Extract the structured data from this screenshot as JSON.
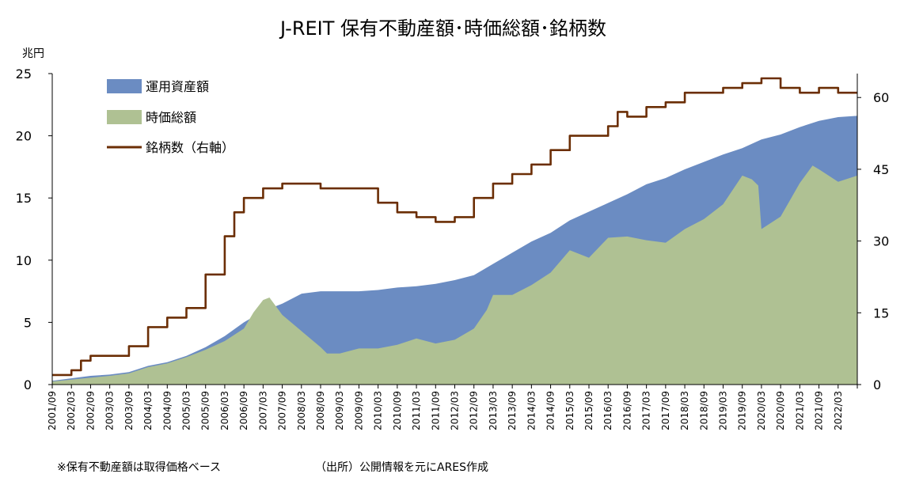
{
  "chart_data": {
    "type": "area",
    "title": "J-REIT 保有不動産額･時価総額･銘柄数",
    "y_unit": "兆円",
    "ylim": [
      0,
      25
    ],
    "yticks": [
      0,
      5,
      10,
      15,
      20,
      25
    ],
    "y2lim": [
      0,
      65
    ],
    "y2ticks": [
      0,
      15,
      30,
      45,
      60
    ],
    "x_tick_labels": [
      "2001/09",
      "2002/03",
      "2002/09",
      "2003/03",
      "2003/09",
      "2004/03",
      "2004/09",
      "2005/03",
      "2005/09",
      "2006/03",
      "2006/09",
      "2007/03",
      "2007/09",
      "2008/03",
      "2008/09",
      "2009/03",
      "2009/09",
      "2010/03",
      "2010/09",
      "2011/03",
      "2011/09",
      "2012/03",
      "2012/09",
      "2013/03",
      "2013/09",
      "2014/03",
      "2014/09",
      "2015/03",
      "2015/09",
      "2016/03",
      "2016/09",
      "2017/03",
      "2017/09",
      "2018/03",
      "2018/09",
      "2019/03",
      "2019/09",
      "2020/03",
      "2020/09",
      "2021/03",
      "2021/09",
      "2022/03"
    ],
    "x_start": "2001/09",
    "x_end": "2022/09",
    "legend": [
      "運用資産額",
      "時価総額",
      "銘柄数（右軸）"
    ],
    "legend_position": "top-left",
    "colors": {
      "assets": "#6b8cc2",
      "market_cap": "#afc193",
      "count": "#6b2e05"
    },
    "series": [
      {
        "name": "運用資産額",
        "kind": "area",
        "points": [
          [
            "2001/09",
            0.3
          ],
          [
            "2002/03",
            0.5
          ],
          [
            "2002/09",
            0.7
          ],
          [
            "2003/03",
            0.8
          ],
          [
            "2003/09",
            1.0
          ],
          [
            "2004/03",
            1.5
          ],
          [
            "2004/09",
            1.8
          ],
          [
            "2005/03",
            2.3
          ],
          [
            "2005/09",
            3.0
          ],
          [
            "2006/03",
            3.9
          ],
          [
            "2006/09",
            5.0
          ],
          [
            "2007/03",
            5.9
          ],
          [
            "2007/09",
            6.5
          ],
          [
            "2008/03",
            7.3
          ],
          [
            "2008/09",
            7.5
          ],
          [
            "2009/03",
            7.5
          ],
          [
            "2009/09",
            7.5
          ],
          [
            "2010/03",
            7.6
          ],
          [
            "2010/09",
            7.8
          ],
          [
            "2011/03",
            7.9
          ],
          [
            "2011/09",
            8.1
          ],
          [
            "2012/03",
            8.4
          ],
          [
            "2012/09",
            8.8
          ],
          [
            "2013/03",
            9.7
          ],
          [
            "2013/09",
            10.6
          ],
          [
            "2014/03",
            11.5
          ],
          [
            "2014/09",
            12.2
          ],
          [
            "2015/03",
            13.2
          ],
          [
            "2015/09",
            13.9
          ],
          [
            "2016/03",
            14.6
          ],
          [
            "2016/09",
            15.3
          ],
          [
            "2017/03",
            16.1
          ],
          [
            "2017/09",
            16.6
          ],
          [
            "2018/03",
            17.3
          ],
          [
            "2018/09",
            17.9
          ],
          [
            "2019/03",
            18.5
          ],
          [
            "2019/09",
            19.0
          ],
          [
            "2020/03",
            19.7
          ],
          [
            "2020/09",
            20.1
          ],
          [
            "2021/03",
            20.7
          ],
          [
            "2021/09",
            21.2
          ],
          [
            "2022/03",
            21.5
          ],
          [
            "2022/09",
            21.6
          ]
        ]
      },
      {
        "name": "時価総額",
        "kind": "area",
        "points": [
          [
            "2001/09",
            0.25
          ],
          [
            "2002/03",
            0.4
          ],
          [
            "2002/09",
            0.55
          ],
          [
            "2003/03",
            0.7
          ],
          [
            "2003/09",
            0.9
          ],
          [
            "2004/03",
            1.4
          ],
          [
            "2004/09",
            1.7
          ],
          [
            "2005/03",
            2.2
          ],
          [
            "2005/09",
            2.8
          ],
          [
            "2006/03",
            3.5
          ],
          [
            "2006/09",
            4.5
          ],
          [
            "2006/12",
            5.8
          ],
          [
            "2007/03",
            6.8
          ],
          [
            "2007/05",
            7.0
          ],
          [
            "2007/09",
            5.6
          ],
          [
            "2008/03",
            4.3
          ],
          [
            "2008/09",
            3.0
          ],
          [
            "2008/11",
            2.5
          ],
          [
            "2009/03",
            2.5
          ],
          [
            "2009/09",
            2.9
          ],
          [
            "2010/03",
            2.9
          ],
          [
            "2010/09",
            3.2
          ],
          [
            "2011/03",
            3.7
          ],
          [
            "2011/09",
            3.3
          ],
          [
            "2012/03",
            3.6
          ],
          [
            "2012/09",
            4.5
          ],
          [
            "2013/01",
            6.0
          ],
          [
            "2013/03",
            7.2
          ],
          [
            "2013/09",
            7.2
          ],
          [
            "2014/03",
            8.0
          ],
          [
            "2014/09",
            9.0
          ],
          [
            "2015/03",
            10.8
          ],
          [
            "2015/09",
            10.2
          ],
          [
            "2016/03",
            11.8
          ],
          [
            "2016/09",
            11.9
          ],
          [
            "2017/03",
            11.6
          ],
          [
            "2017/09",
            11.4
          ],
          [
            "2018/03",
            12.5
          ],
          [
            "2018/09",
            13.3
          ],
          [
            "2019/03",
            14.5
          ],
          [
            "2019/09",
            16.8
          ],
          [
            "2019/12",
            16.5
          ],
          [
            "2020/02",
            16.0
          ],
          [
            "2020/03",
            12.5
          ],
          [
            "2020/09",
            13.5
          ],
          [
            "2021/03",
            16.2
          ],
          [
            "2021/07",
            17.6
          ],
          [
            "2021/09",
            17.3
          ],
          [
            "2022/03",
            16.3
          ],
          [
            "2022/09",
            16.8
          ]
        ]
      },
      {
        "name": "銘柄数（右軸）",
        "kind": "line",
        "axis": "right",
        "points": [
          [
            "2001/09",
            2
          ],
          [
            "2002/03",
            3
          ],
          [
            "2002/06",
            5
          ],
          [
            "2002/09",
            6
          ],
          [
            "2003/03",
            6
          ],
          [
            "2003/09",
            8
          ],
          [
            "2004/03",
            12
          ],
          [
            "2004/09",
            14
          ],
          [
            "2005/03",
            16
          ],
          [
            "2005/09",
            23
          ],
          [
            "2006/03",
            31
          ],
          [
            "2006/06",
            36
          ],
          [
            "2006/09",
            39
          ],
          [
            "2007/03",
            41
          ],
          [
            "2007/09",
            42
          ],
          [
            "2008/03",
            42
          ],
          [
            "2008/09",
            41
          ],
          [
            "2009/03",
            41
          ],
          [
            "2009/09",
            41
          ],
          [
            "2010/03",
            38
          ],
          [
            "2010/09",
            36
          ],
          [
            "2011/03",
            35
          ],
          [
            "2011/09",
            34
          ],
          [
            "2012/03",
            35
          ],
          [
            "2012/09",
            39
          ],
          [
            "2013/03",
            42
          ],
          [
            "2013/09",
            44
          ],
          [
            "2014/03",
            46
          ],
          [
            "2014/09",
            49
          ],
          [
            "2015/03",
            52
          ],
          [
            "2015/09",
            52
          ],
          [
            "2016/03",
            54
          ],
          [
            "2016/06",
            57
          ],
          [
            "2016/09",
            56
          ],
          [
            "2017/03",
            58
          ],
          [
            "2017/09",
            59
          ],
          [
            "2018/03",
            61
          ],
          [
            "2018/09",
            61
          ],
          [
            "2019/03",
            62
          ],
          [
            "2019/09",
            63
          ],
          [
            "2020/03",
            64
          ],
          [
            "2020/09",
            62
          ],
          [
            "2021/03",
            61
          ],
          [
            "2021/09",
            62
          ],
          [
            "2022/03",
            61
          ],
          [
            "2022/09",
            61
          ]
        ]
      }
    ]
  },
  "notes": {
    "left": "※保有不動産額は取得価格ベース",
    "right": "（出所）公開情報を元にARES作成"
  }
}
